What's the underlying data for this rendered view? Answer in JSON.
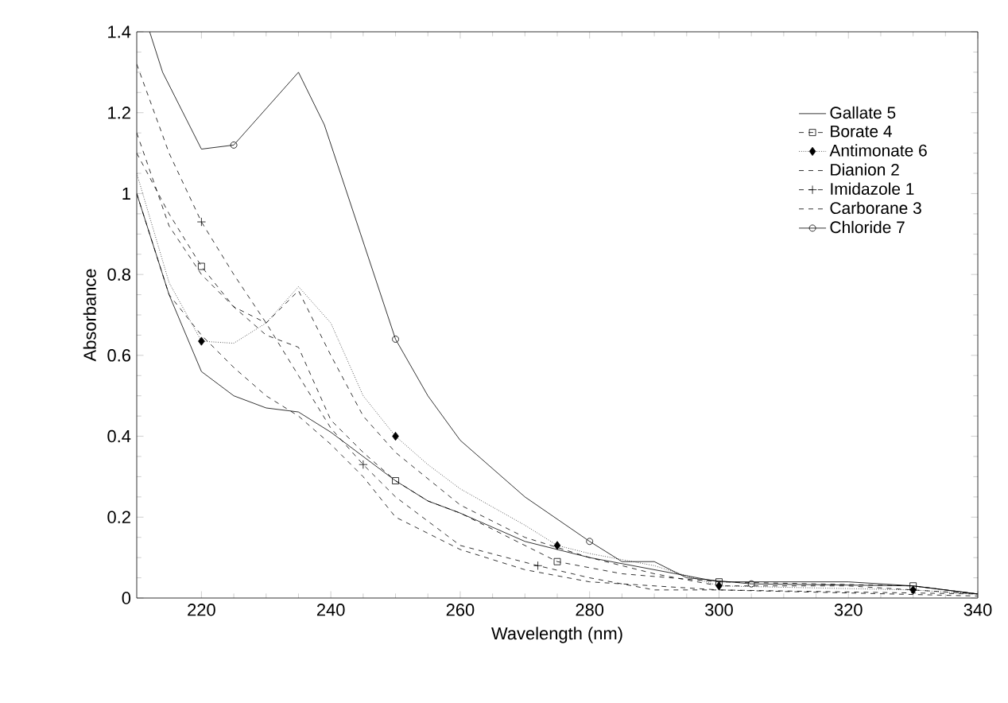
{
  "chart_data": {
    "type": "line",
    "xlabel": "Wavelength  (nm)",
    "ylabel": "Absorbance",
    "xlim": [
      210,
      340
    ],
    "ylim": [
      0,
      1.4
    ],
    "xticks": [
      220,
      240,
      260,
      280,
      300,
      320,
      340
    ],
    "yticks": [
      {
        "value": 0,
        "label": "0"
      },
      {
        "value": 0.2,
        "label": "0.2"
      },
      {
        "value": 0.4,
        "label": "0.4"
      },
      {
        "value": 0.6,
        "label": "0.6"
      },
      {
        "value": 0.8,
        "label": "0.8"
      },
      {
        "value": 1,
        "label": "1"
      },
      {
        "value": 1.2,
        "label": "1.2"
      },
      {
        "value": 1.4,
        "label": "1.4"
      }
    ],
    "grid": false,
    "legend": "top right",
    "series": [
      {
        "name": "Gallate 5",
        "color": "#000000",
        "line_style": "solid",
        "x": [
          210,
          215,
          220,
          225,
          230,
          235,
          240,
          245,
          250,
          255,
          260,
          270,
          280,
          290,
          300,
          320,
          330,
          340
        ],
        "values": [
          1.0,
          0.75,
          0.56,
          0.5,
          0.47,
          0.46,
          0.41,
          0.35,
          0.29,
          0.24,
          0.21,
          0.14,
          0.1,
          0.07,
          0.04,
          0.04,
          0.03,
          0.01
        ]
      },
      {
        "name": "Borate 4",
        "color": "#000000",
        "line_style": "dashed",
        "x": [
          210,
          215,
          220,
          225,
          230,
          235,
          240,
          245,
          250,
          255,
          260,
          265,
          275,
          285,
          300,
          330,
          340
        ],
        "values": [
          1.1,
          0.95,
          0.82,
          0.72,
          0.65,
          0.62,
          0.44,
          0.36,
          0.29,
          0.24,
          0.21,
          0.17,
          0.09,
          0.06,
          0.04,
          0.03,
          0.01
        ]
      },
      {
        "type": "scatter",
        "color": "#000000",
        "marker": "square",
        "x": [
          220,
          250,
          275,
          300,
          330
        ],
        "values": [
          0.82,
          0.29,
          0.09,
          0.04,
          0.03
        ]
      },
      {
        "name": "Antimonate 6",
        "color": "#000000",
        "line_style": "dotted",
        "x": [
          210,
          215,
          220,
          225,
          230,
          235,
          240,
          245,
          250,
          255,
          260,
          270,
          275,
          280,
          290,
          300,
          330,
          340
        ],
        "values": [
          1.05,
          0.78,
          0.635,
          0.63,
          0.68,
          0.77,
          0.68,
          0.5,
          0.4,
          0.33,
          0.27,
          0.18,
          0.13,
          0.11,
          0.08,
          0.03,
          0.02,
          0.01
        ]
      },
      {
        "type": "scatter",
        "color": "#000000",
        "marker": "diamond",
        "x": [
          220,
          250,
          275,
          300,
          330
        ],
        "values": [
          0.635,
          0.4,
          0.13,
          0.03,
          0.02
        ]
      },
      {
        "name": "Dianion 2",
        "color": "#000000",
        "line_style": "dashed",
        "x": [
          210,
          215,
          220,
          225,
          230,
          235,
          240,
          245,
          250,
          260,
          270,
          280,
          290,
          300,
          320,
          340
        ],
        "values": [
          1.15,
          0.92,
          0.8,
          0.72,
          0.68,
          0.76,
          0.6,
          0.45,
          0.36,
          0.23,
          0.15,
          0.1,
          0.06,
          0.03,
          0.03,
          0.01
        ]
      },
      {
        "name": "Imidazole 1",
        "color": "#000000",
        "line_style": "dashed",
        "x": [
          210,
          215,
          220,
          225,
          230,
          235,
          240,
          245,
          250,
          260,
          272,
          280,
          290,
          300,
          340
        ],
        "values": [
          1.32,
          1.1,
          0.93,
          0.8,
          0.68,
          0.55,
          0.42,
          0.33,
          0.25,
          0.13,
          0.08,
          0.05,
          0.02,
          0.02,
          0.01
        ]
      },
      {
        "type": "scatter",
        "color": "#000000",
        "marker": "cross",
        "x": [
          220,
          245,
          272
        ],
        "values": [
          0.93,
          0.33,
          0.08
        ]
      },
      {
        "name": "Carborane 3",
        "color": "#000000",
        "line_style": "dashed",
        "x": [
          210,
          215,
          220,
          225,
          230,
          235,
          240,
          245,
          250,
          260,
          270,
          280,
          300,
          340
        ],
        "values": [
          1.0,
          0.75,
          0.65,
          0.57,
          0.5,
          0.45,
          0.38,
          0.3,
          0.2,
          0.12,
          0.07,
          0.04,
          0.02,
          0.005
        ]
      },
      {
        "name": "Chloride 7",
        "color": "#000000",
        "line_style": "solid",
        "x": [
          212,
          214,
          220,
          225,
          235,
          239,
          250,
          255,
          260,
          270,
          280,
          285,
          290,
          295,
          305,
          330,
          340
        ],
        "values": [
          1.4,
          1.3,
          1.11,
          1.12,
          1.3,
          1.17,
          0.64,
          0.5,
          0.39,
          0.25,
          0.14,
          0.09,
          0.09,
          0.05,
          0.035,
          0.03,
          0.01
        ]
      },
      {
        "type": "scatter",
        "color": "#000000",
        "marker": "circle",
        "x": [
          225,
          250,
          280,
          305
        ],
        "values": [
          1.12,
          0.64,
          0.14,
          0.035
        ]
      }
    ]
  }
}
